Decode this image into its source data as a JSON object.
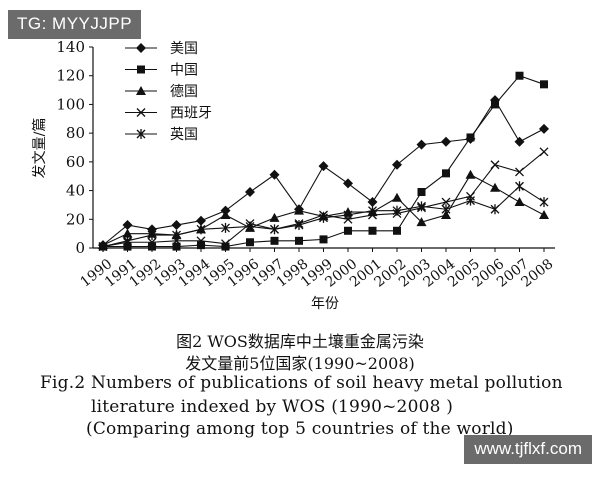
{
  "watermark_top": "TG: MYYJJPP",
  "watermark_bottom": "www.tjflxf.com",
  "caption": {
    "cn_line1": "图2  WOS数据库中土壤重金属污染",
    "cn_line2": "发文量前5位国家(1990~2008)",
    "en_line1": "Fig.2  Numbers of publications of soil heavy metal pollution",
    "en_line2": "literature indexed by WOS (1990~2008 )",
    "en_line3": "(Comparing among top 5 countries of the world)"
  },
  "chart_data": {
    "type": "line",
    "xlabel": "年份",
    "ylabel": "发文量/篇",
    "ylim": [
      0,
      140
    ],
    "yticks": [
      0,
      20,
      40,
      60,
      80,
      100,
      120,
      140
    ],
    "categories": [
      "1990",
      "1991",
      "1992",
      "1993",
      "1994",
      "1995",
      "1996",
      "1997",
      "1998",
      "1999",
      "2000",
      "2001",
      "2002",
      "2003",
      "2004",
      "2005",
      "2006",
      "2007",
      "2008"
    ],
    "series": [
      {
        "name": "美国",
        "marker": "diamond",
        "values": [
          2,
          16,
          13,
          16,
          19,
          26,
          39,
          51,
          27,
          57,
          45,
          32,
          58,
          72,
          74,
          76,
          103,
          74,
          83
        ]
      },
      {
        "name": "中国",
        "marker": "square",
        "values": [
          1,
          1,
          1,
          1,
          2,
          1,
          4,
          5,
          5,
          6,
          12,
          12,
          12,
          39,
          52,
          77,
          100,
          120,
          114
        ]
      },
      {
        "name": "德国",
        "marker": "triangle",
        "values": [
          2,
          10,
          10,
          9,
          13,
          23,
          14,
          21,
          26,
          22,
          25,
          25,
          35,
          18,
          23,
          51,
          42,
          32,
          23
        ]
      },
      {
        "name": "西班牙",
        "marker": "x",
        "values": [
          1,
          4,
          4,
          5,
          5,
          3,
          17,
          13,
          17,
          23,
          20,
          23,
          24,
          28,
          32,
          36,
          58,
          53,
          67
        ]
      },
      {
        "name": "英国",
        "marker": "star",
        "values": [
          1,
          5,
          9,
          9,
          13,
          14,
          15,
          13,
          16,
          21,
          23,
          26,
          26,
          29,
          27,
          33,
          27,
          43,
          32
        ]
      }
    ]
  }
}
